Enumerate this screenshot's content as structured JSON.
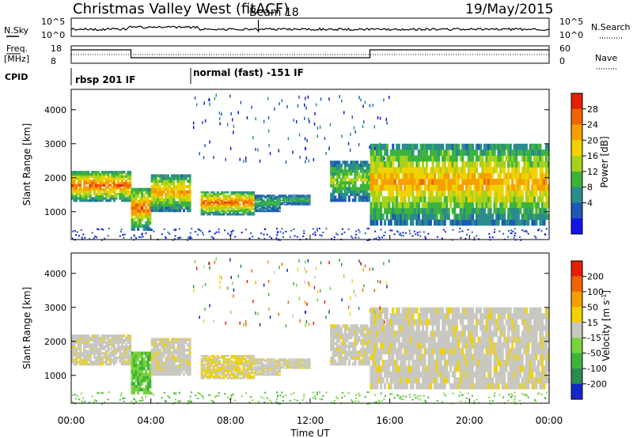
{
  "header": {
    "station": "Christmas Valley West (fitACF)",
    "beam": "Beam 18",
    "date": "19/May/2015"
  },
  "top_panels": {
    "nsky_label": "N.Sky",
    "nsky_ticks_left": [
      "10^5",
      "10^0"
    ],
    "nsearch_ticks_right": [
      "10^5",
      "10^0"
    ],
    "nsearch_label": "N.Search",
    "freq_label_line1": "Freq.",
    "freq_label_line2": "[MHz]",
    "freq_ticks": [
      "18",
      "8"
    ],
    "nave_ticks": [
      "60",
      "0"
    ],
    "nave_label": "Nave",
    "cpid_label": "CPID",
    "cpid_modes": [
      {
        "label": "rbsp 201 IF",
        "start_hour": 0
      },
      {
        "label": "normal (fast) -151 IF",
        "start_hour": 6
      }
    ]
  },
  "chart_data": [
    {
      "type": "heatmap",
      "title": "Power",
      "xlabel": "",
      "ylabel": "Slant Range [km]",
      "xlim_hours": [
        0,
        24
      ],
      "ylim_km": [
        180,
        4600
      ],
      "y_ticks": [
        "4000",
        "3000",
        "2000",
        "1000"
      ],
      "y_tick_values": [
        4000,
        3000,
        2000,
        1000
      ],
      "colorbar": {
        "label": "Power [dB]",
        "ticks": [
          "28",
          "24",
          "20",
          "16",
          "12",
          "8",
          "4"
        ],
        "colors": [
          "#1414e6",
          "#1e5ab4",
          "#2a8c8c",
          "#3cb43c",
          "#a6d21e",
          "#f0d200",
          "#f5a000",
          "#f06400",
          "#e61e00"
        ]
      },
      "echo_bands": [
        {
          "t_start": 0.0,
          "t_end": 3.0,
          "range_km": [
            1300,
            2200
          ],
          "peak_db": 28
        },
        {
          "t_start": 3.0,
          "t_end": 4.0,
          "range_km": [
            450,
            1700
          ],
          "peak_db": 28
        },
        {
          "t_start": 4.0,
          "t_end": 6.0,
          "range_km": [
            1000,
            2100
          ],
          "peak_db": 24
        },
        {
          "t_start": 6.5,
          "t_end": 9.2,
          "range_km": [
            900,
            1600
          ],
          "peak_db": 28
        },
        {
          "t_start": 9.2,
          "t_end": 10.5,
          "range_km": [
            1000,
            1500
          ],
          "peak_db": 12
        },
        {
          "t_start": 10.5,
          "t_end": 12.0,
          "range_km": [
            1200,
            1500
          ],
          "peak_db": 12
        },
        {
          "t_start": 13.0,
          "t_end": 15.0,
          "range_km": [
            1300,
            2500
          ],
          "peak_db": 16
        },
        {
          "t_start": 15.0,
          "t_end": 24.0,
          "range_km": [
            600,
            3000
          ],
          "peak_db": 24
        }
      ]
    },
    {
      "type": "heatmap",
      "title": "Velocity",
      "xlabel": "Time UT",
      "ylabel": "Slant Range [km]",
      "xlim_hours": [
        0,
        24
      ],
      "ylim_km": [
        180,
        4600
      ],
      "x_ticks": [
        "00:00",
        "04:00",
        "08:00",
        "12:00",
        "16:00",
        "20:00",
        "00:00"
      ],
      "y_ticks": [
        "4000",
        "3000",
        "2000",
        "1000"
      ],
      "y_tick_values": [
        4000,
        3000,
        2000,
        1000
      ],
      "colorbar": {
        "label": "Velocity [m s^-1]",
        "ticks": [
          "200",
          "100",
          "50",
          "15",
          "-15",
          "-50",
          "-100",
          "-200"
        ],
        "colors": [
          "#1428c8",
          "#2a8c50",
          "#3cb43c",
          "#7ad23c",
          "#c8c8c0",
          "#f0d200",
          "#f5a000",
          "#f06400",
          "#e61e00"
        ]
      }
    }
  ]
}
